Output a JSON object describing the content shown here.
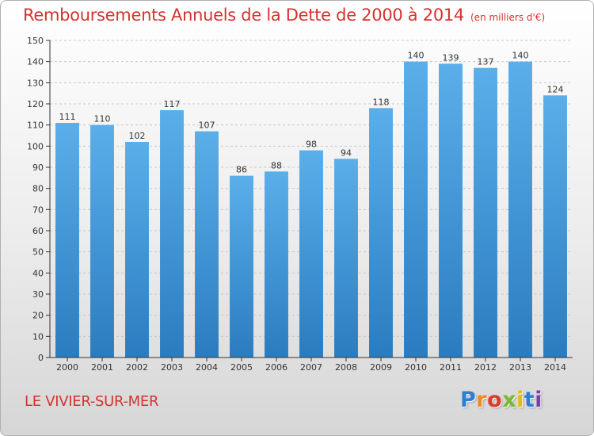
{
  "page": {
    "title": "Remboursements Annuels de la Dette de 2000 à 2014",
    "subtitle": "(en milliers d'€)",
    "commune": "LE VIVIER-SUR-MER",
    "logo_letters": [
      "P",
      "r",
      "o",
      "x",
      "i",
      "t",
      "i"
    ]
  },
  "colors": {
    "title": "#d5322f",
    "bar_top": "#5aafea",
    "bar_bottom": "#2a7cc0",
    "axis": "#333333",
    "grid": "#c8c8c8",
    "label": "#333333"
  },
  "chart_data": {
    "type": "bar",
    "title": "Remboursements Annuels de la Dette de 2000 à 2014",
    "subtitle": "(en milliers d'€)",
    "xlabel": "",
    "ylabel": "",
    "ylim": [
      0,
      150
    ],
    "yticks": [
      0,
      10,
      20,
      30,
      40,
      50,
      60,
      70,
      80,
      90,
      100,
      110,
      120,
      130,
      140,
      150
    ],
    "grid": true,
    "categories": [
      "2000",
      "2001",
      "2002",
      "2003",
      "2004",
      "2005",
      "2006",
      "2007",
      "2008",
      "2009",
      "2010",
      "2011",
      "2012",
      "2013",
      "2014"
    ],
    "values": [
      111,
      110,
      102,
      117,
      107,
      86,
      88,
      98,
      94,
      118,
      140,
      139,
      137,
      140,
      124
    ]
  }
}
